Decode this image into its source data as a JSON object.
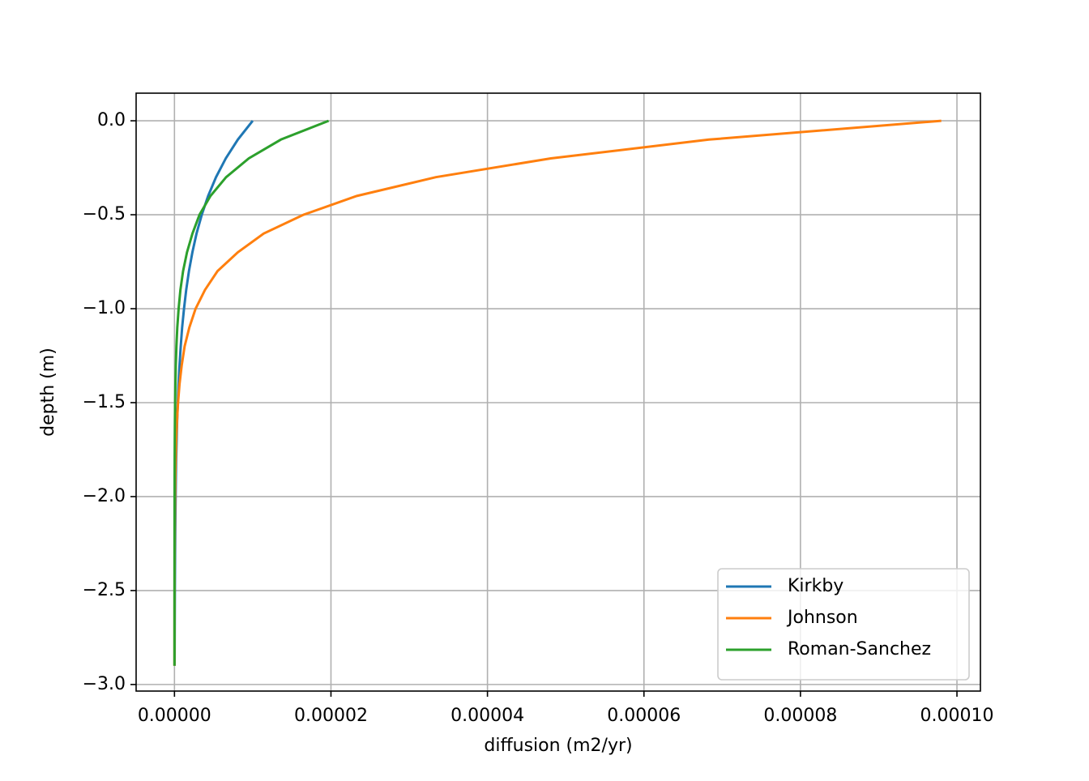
{
  "chart_data": {
    "type": "line",
    "xlabel": "diffusion (m2/yr)",
    "ylabel": "depth (m)",
    "y": [
      0,
      -0.1,
      -0.2,
      -0.3,
      -0.4,
      -0.5,
      -0.6,
      -0.7,
      -0.8,
      -0.9,
      -1.0,
      -1.1,
      -1.2,
      -1.3,
      -1.4,
      -1.5,
      -1.6,
      -1.7,
      -1.8,
      -1.9,
      -2.0,
      -2.1,
      -2.2,
      -2.3,
      -2.4,
      -2.5,
      -2.6,
      -2.7,
      -2.8,
      -2.9
    ],
    "series": [
      {
        "name": "Kirkby",
        "color": "#1f77b4",
        "values": [
          1e-05,
          8.1e-06,
          6.56e-06,
          5.31e-06,
          4.3e-06,
          3.49e-06,
          2.82e-06,
          2.29e-06,
          1.85e-06,
          1.5e-06,
          1.22e-06,
          9.8e-07,
          8e-07,
          6.5e-07,
          5.2e-07,
          4.2e-07,
          3.4e-07,
          2.8e-07,
          2.2e-07,
          1.8e-07,
          1.5e-07,
          1.2e-07,
          9.6e-08,
          7.8e-08,
          6.3e-08,
          5.1e-08,
          4.2e-08,
          3.4e-08,
          2.7e-08,
          2.2e-08
        ]
      },
      {
        "name": "Johnson",
        "color": "#ff7f0e",
        "values": [
          9.8e-05,
          6.83e-05,
          4.81e-05,
          3.34e-05,
          2.33e-05,
          1.65e-05,
          1.14e-05,
          8.1e-06,
          5.5e-06,
          3.9e-06,
          2.7e-06,
          1.9e-06,
          1.3e-06,
          9.3e-07,
          6.5e-07,
          4.6e-07,
          3.2e-07,
          2.2e-07,
          1.6e-07,
          1.1e-07,
          7.7e-08,
          5.4e-08,
          3.8e-08,
          2.6e-08,
          1.8e-08,
          1.3e-08,
          9e-09,
          6e-09,
          4e-09,
          3e-09
        ]
      },
      {
        "name": "Roman-Sanchez",
        "color": "#2ca02c",
        "values": [
          1.97e-05,
          1.36e-05,
          9.5e-06,
          6.6e-06,
          4.6e-06,
          3.2e-06,
          2.3e-06,
          1.6e-06,
          1.1e-06,
          7.6e-07,
          5.3e-07,
          3.6e-07,
          2.5e-07,
          1.7e-07,
          1.2e-07,
          8.3e-08,
          5.7e-08,
          3.9e-08,
          2.7e-08,
          1.9e-08,
          1.3e-08,
          9e-09,
          6e-09,
          4e-09,
          3e-09,
          2e-09,
          1.4e-09,
          1e-09,
          7e-10,
          5e-10
        ]
      }
    ],
    "xlim": [
      -4.9e-06,
      0.000103
    ],
    "ylim": [
      -3.035,
      0.147
    ],
    "xticks": [
      {
        "value": 0,
        "label": "0.00000"
      },
      {
        "value": 2e-05,
        "label": "0.00002"
      },
      {
        "value": 4e-05,
        "label": "0.00004"
      },
      {
        "value": 6e-05,
        "label": "0.00006"
      },
      {
        "value": 8e-05,
        "label": "0.00008"
      },
      {
        "value": 0.0001,
        "label": "0.00010"
      }
    ],
    "yticks": [
      {
        "value": 0,
        "label": "0.0"
      },
      {
        "value": -0.5,
        "label": "−0.5"
      },
      {
        "value": -1.0,
        "label": "−1.0"
      },
      {
        "value": -1.5,
        "label": "−1.5"
      },
      {
        "value": -2.0,
        "label": "−2.0"
      },
      {
        "value": -2.5,
        "label": "−2.5"
      },
      {
        "value": -3.0,
        "label": "−3.0"
      }
    ],
    "grid": true,
    "legend": "lower right"
  }
}
